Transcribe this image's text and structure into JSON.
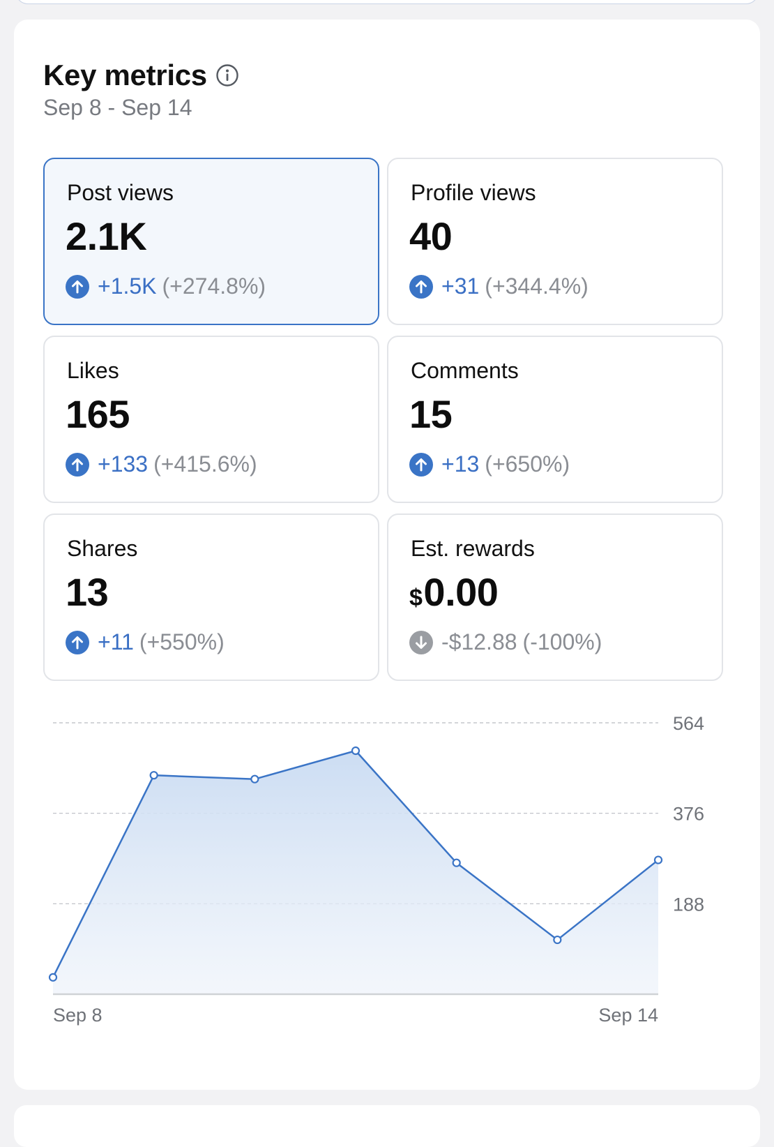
{
  "header": {
    "title": "Key metrics",
    "date_range": "Sep 8 - Sep 14",
    "info_icon": "info-circle-icon"
  },
  "colors": {
    "accent": "#3a74c6",
    "positive": "#3a6fc4",
    "muted": "#8a8d93",
    "selected_bg": "#f3f7fc"
  },
  "metrics": [
    {
      "label": "Post views",
      "value": "2.1K",
      "change": "+1.5K",
      "change_pct": "(+274.8%)",
      "direction": "up",
      "selected": true
    },
    {
      "label": "Profile views",
      "value": "40",
      "change": "+31",
      "change_pct": "(+344.4%)",
      "direction": "up",
      "selected": false
    },
    {
      "label": "Likes",
      "value": "165",
      "change": "+133",
      "change_pct": "(+415.6%)",
      "direction": "up",
      "selected": false
    },
    {
      "label": "Comments",
      "value": "15",
      "change": "+13",
      "change_pct": "(+650%)",
      "direction": "up",
      "selected": false
    },
    {
      "label": "Shares",
      "value": "13",
      "change": "+11",
      "change_pct": "(+550%)",
      "direction": "up",
      "selected": false
    },
    {
      "label": "Est. rewards",
      "currency": "$",
      "value": "0.00",
      "change": "-$12.88",
      "change_pct": "(-100%)",
      "direction": "down",
      "selected": false
    }
  ],
  "chart_data": {
    "type": "area",
    "series": [
      {
        "values": [
          35,
          455,
          447,
          506,
          273,
          113,
          279
        ]
      }
    ],
    "x_tick_labels": [
      "Sep 8",
      "Sep 14"
    ],
    "y_ticks": [
      188,
      376,
      564
    ],
    "ylim": [
      0,
      564
    ],
    "grid": true,
    "y_axis_side": "right"
  }
}
